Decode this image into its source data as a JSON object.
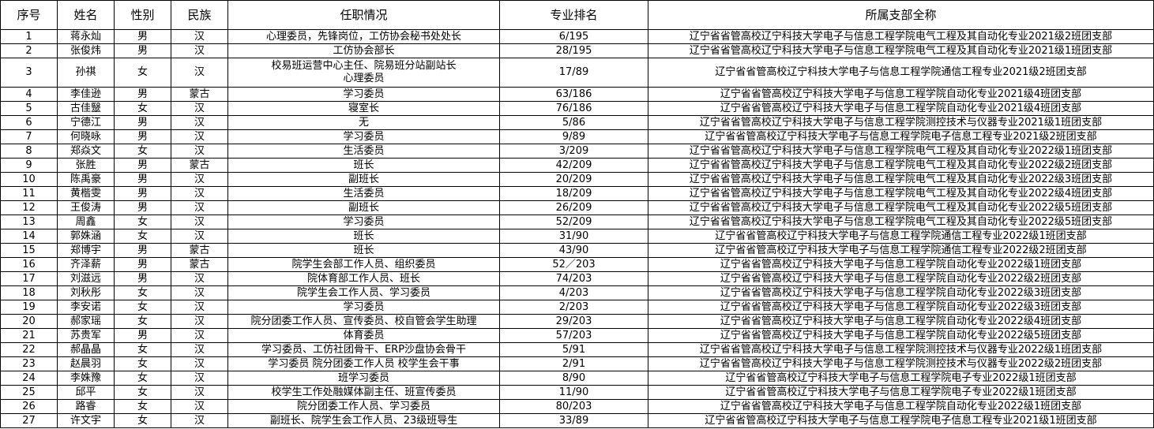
{
  "headers": [
    "序号",
    "姓名",
    "性别",
    "民族",
    "任职情况",
    "专业排名",
    "所属支部全称"
  ],
  "rows": [
    [
      "1",
      "蒋永灿",
      "男",
      "汉",
      "心理委员，先锋岗位，工仿协会秘书处处长",
      "6/195",
      "辽宁省省管高校辽宁科技大学电子与信息工程学院电气工程及其自动化专业2021级2班团支部"
    ],
    [
      "2",
      "张俊炜",
      "男",
      "汉",
      "工仿协会部长",
      "28/195",
      "辽宁省省管高校辽宁科技大学电子与信息工程学院电气工程及其自动化专业2021级1班团支部"
    ],
    [
      "3",
      "孙祺",
      "女",
      "汉",
      "校易班运营中心主任、院易班分站副站长\n心理委员",
      "17/89",
      "辽宁省省管高校辽宁科技大学电子与信息工程学院通信工程专业2021级2班团支部"
    ],
    [
      "4",
      "李佳逊",
      "男",
      "蒙古",
      "学习委员",
      "63/186",
      "辽宁省省管高校辽宁科技大学电子与信息工程学院自动化专业2021级4班团支部"
    ],
    [
      "5",
      "古佳毉",
      "女",
      "汉",
      "寝室长",
      "76/186",
      "辽宁省省管高校辽宁科技大学电子与信息工程学院自动化专业2021级4班团支部"
    ],
    [
      "6",
      "宁德江",
      "男",
      "汉",
      "无",
      "5/86",
      "辽宁省省管高校辽宁科技大学电子与信息工程学院测控技术与仪器专业2021级1班团支部"
    ],
    [
      "7",
      "何晓咏",
      "男",
      "汉",
      "学习委员",
      "9/89",
      "辽宁省省管高校辽宁科技大学电子与信息工程学院电子信息工程专业2021级2班团支部"
    ],
    [
      "8",
      "郑焱文",
      "女",
      "汉",
      "生活委员",
      "3/209",
      "辽宁省省管高校辽宁科技大学电子与信息工程学院电气工程及其自动化专业2022级1班团支部"
    ],
    [
      "9",
      "张胜",
      "男",
      "蒙古",
      "班长",
      "42/209",
      "辽宁省省管高校辽宁科技大学电子与信息工程学院电气工程及其自动化专业2022级2班团支部"
    ],
    [
      "10",
      "陈禹豪",
      "男",
      "汉",
      "副班长",
      "20/209",
      "辽宁省省管高校辽宁科技大学电子与信息工程学院电气工程及其自动化专业2022级3班团支部"
    ],
    [
      "11",
      "黄楷雯",
      "男",
      "汉",
      "生活委员",
      "18/209",
      "辽宁省省管高校辽宁科技大学电子与信息工程学院电气工程及其自动化专业2022级4班团支部"
    ],
    [
      "12",
      "王俊涛",
      "男",
      "汉",
      "副班长",
      "26/209",
      "辽宁省省管高校辽宁科技大学电子与信息工程学院电气工程及其自动化专业2022级5班团支部"
    ],
    [
      "13",
      "周鑫",
      "女",
      "汉",
      "学习委员",
      "52/209",
      "辽宁省省管高校辽宁科技大学电子与信息工程学院电气工程及其自动化专业2022级5班团支部"
    ],
    [
      "14",
      "郭姝涵",
      "女",
      "汉",
      "班长",
      "31/90",
      "辽宁省省管高校辽宁科技大学电子与信息工程学院通信工程专业2022级1班团支部"
    ],
    [
      "15",
      "郑博宇",
      "男",
      "蒙古",
      "班长",
      "43/90",
      "辽宁省省管高校辽宁科技大学电子与信息工程学院通信工程专业2022级2班团支部"
    ],
    [
      "16",
      "齐泽薪",
      "男",
      "蒙古",
      "院学生会部工作人员、组织委员",
      "52／203",
      "辽宁省省管高校辽宁科技大学电子与信息工程学院自动化专业2022级1班团支部"
    ],
    [
      "17",
      "刘滋远",
      "男",
      "汉",
      "院体育部工作人员、班长",
      "74/203",
      "辽宁省省管高校辽宁科技大学电子与信息工程学院自动化专业2022级2班团支部"
    ],
    [
      "18",
      "刘秋彤",
      "女",
      "汉",
      "院学生会工作人员、学习委员",
      "4/203",
      "辽宁省省管高校辽宁科技大学电子与信息工程学院自动化专业2022级3班团支部"
    ],
    [
      "19",
      "李安诺",
      "女",
      "汉",
      "学习委员",
      "2/203",
      "辽宁省省管高校辽宁科技大学电子与信息工程学院自动化专业2022级3班团支部"
    ],
    [
      "20",
      "郝家瑶",
      "女",
      "汉",
      "院分团委工作人员、宣传委员、校自管会学生助理",
      "29/203",
      "辽宁省省管高校辽宁科技大学电子与信息工程学院自动化专业2022级4班团支部"
    ],
    [
      "21",
      "苏贵军",
      "男",
      "汉",
      "体育委员",
      "57/203",
      "辽宁省省管高校辽宁科技大学电子与信息工程学院自动化专业2022级5班团支部"
    ],
    [
      "22",
      "郝晶晶",
      "女",
      "汉",
      "学习委员、工仿社团骨干、ERP沙盘协会骨干",
      "5/91",
      "辽宁省省管高校辽宁科技大学电子与信息工程学院测控技术与仪器专业2022级1班团支部"
    ],
    [
      "23",
      "赵晨羽",
      "女",
      "汉",
      "学习委员  院分团委工作人员  校学生会干事",
      "2/91",
      "辽宁省省管高校辽宁科技大学电子与信息工程学院测控技术与仪器专业2022级2班团支部"
    ],
    [
      "24",
      "李姝豫",
      "女",
      "汉",
      "班学习委员",
      "8/90",
      "辽宁省省管高校辽宁科技大学电子与信息工程学院电子专业2022级1班团支部"
    ],
    [
      "25",
      "邱平",
      "女",
      "汉",
      "校学生工作处融媒体副主任、班宣传委员",
      "11/90",
      "辽宁省省管高校辽宁科技大学电子与信息工程学院电子专业2022级1班团支部"
    ],
    [
      "26",
      "路睿",
      "女",
      "汉",
      "院分团委工作人员、学习委员",
      "80/203",
      "辽宁省省管高校辽宁科技大学电子与信息工程学院自动化专业2022级1班团支部"
    ],
    [
      "27",
      "许文宇",
      "女",
      "汉",
      "副班长、院学生会工作人员、23级班导生",
      "33/89",
      "辽宁省省管高校辽宁科技大学电子与信息工程学院电子信息工程专业2021级1班团支部"
    ]
  ]
}
